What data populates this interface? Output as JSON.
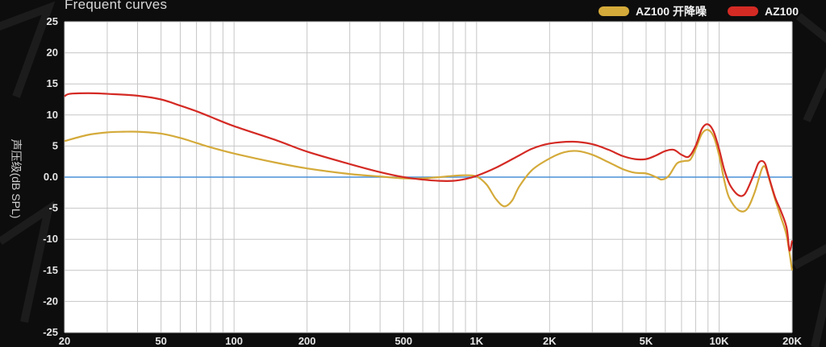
{
  "chart_data": {
    "type": "line",
    "title": "Frequent curves",
    "ylabel": "声压级(dB SPL)",
    "xlabel": "",
    "xscale": "log",
    "xlim": [
      20,
      20000
    ],
    "ylim": [
      -25,
      25
    ],
    "grid": true,
    "legend_position": "top-right",
    "xticks": [
      {
        "value": 20,
        "label": "20"
      },
      {
        "value": 50,
        "label": "50"
      },
      {
        "value": 100,
        "label": "100"
      },
      {
        "value": 200,
        "label": "200"
      },
      {
        "value": 500,
        "label": "500"
      },
      {
        "value": 1000,
        "label": "1K"
      },
      {
        "value": 2000,
        "label": "2K"
      },
      {
        "value": 5000,
        "label": "5K"
      },
      {
        "value": 10000,
        "label": "10K"
      },
      {
        "value": 20000,
        "label": "20K"
      }
    ],
    "yticks": [
      {
        "value": 25,
        "label": "25"
      },
      {
        "value": 20,
        "label": "20"
      },
      {
        "value": 15,
        "label": "15"
      },
      {
        "value": 10,
        "label": "10"
      },
      {
        "value": 5,
        "label": "5"
      },
      {
        "value": 0,
        "label": "0.0"
      },
      {
        "value": -5,
        "label": "-5"
      },
      {
        "value": -10,
        "label": "-10"
      },
      {
        "value": -15,
        "label": "-15"
      },
      {
        "value": -20,
        "label": "-20"
      },
      {
        "value": -25,
        "label": "-25"
      }
    ],
    "reference_line": {
      "value": 0,
      "color": "#4a90d9"
    },
    "series": [
      {
        "name": "AZ100 开降噪",
        "color": "#d4aa3a",
        "points": [
          [
            20,
            5.8
          ],
          [
            25,
            6.8
          ],
          [
            30,
            7.2
          ],
          [
            35,
            7.3
          ],
          [
            40,
            7.3
          ],
          [
            50,
            7.0
          ],
          [
            60,
            6.3
          ],
          [
            70,
            5.5
          ],
          [
            80,
            4.8
          ],
          [
            100,
            3.8
          ],
          [
            150,
            2.3
          ],
          [
            200,
            1.4
          ],
          [
            300,
            0.5
          ],
          [
            400,
            0.1
          ],
          [
            500,
            -0.2
          ],
          [
            600,
            -0.2
          ],
          [
            700,
            0.0
          ],
          [
            800,
            0.2
          ],
          [
            900,
            0.3
          ],
          [
            1000,
            0.1
          ],
          [
            1100,
            -1.2
          ],
          [
            1200,
            -3.5
          ],
          [
            1300,
            -4.7
          ],
          [
            1400,
            -3.8
          ],
          [
            1500,
            -1.5
          ],
          [
            1700,
            1.2
          ],
          [
            2000,
            3.0
          ],
          [
            2300,
            4.0
          ],
          [
            2600,
            4.2
          ],
          [
            3000,
            3.6
          ],
          [
            3500,
            2.4
          ],
          [
            4000,
            1.3
          ],
          [
            4500,
            0.7
          ],
          [
            5000,
            0.6
          ],
          [
            5500,
            0.0
          ],
          [
            5800,
            -0.4
          ],
          [
            6200,
            0.2
          ],
          [
            6700,
            2.2
          ],
          [
            7200,
            2.6
          ],
          [
            7600,
            2.8
          ],
          [
            8000,
            4.5
          ],
          [
            8500,
            7.0
          ],
          [
            9000,
            7.6
          ],
          [
            9500,
            6.5
          ],
          [
            10000,
            3.5
          ],
          [
            10500,
            -0.5
          ],
          [
            11000,
            -3.3
          ],
          [
            12000,
            -5.3
          ],
          [
            13000,
            -5.2
          ],
          [
            14000,
            -2.5
          ],
          [
            15000,
            1.3
          ],
          [
            15500,
            1.6
          ],
          [
            16000,
            0.0
          ],
          [
            17000,
            -3.5
          ],
          [
            18000,
            -6.5
          ],
          [
            19000,
            -9.5
          ],
          [
            20000,
            -15.0
          ]
        ]
      },
      {
        "name": "AZ100",
        "color": "#d42a24",
        "points": [
          [
            20,
            13.0
          ],
          [
            21,
            13.4
          ],
          [
            25,
            13.5
          ],
          [
            30,
            13.4
          ],
          [
            40,
            13.1
          ],
          [
            50,
            12.5
          ],
          [
            60,
            11.5
          ],
          [
            70,
            10.6
          ],
          [
            80,
            9.7
          ],
          [
            100,
            8.2
          ],
          [
            150,
            5.9
          ],
          [
            200,
            4.1
          ],
          [
            300,
            2.1
          ],
          [
            400,
            0.8
          ],
          [
            500,
            0.0
          ],
          [
            600,
            -0.4
          ],
          [
            700,
            -0.6
          ],
          [
            800,
            -0.6
          ],
          [
            900,
            -0.3
          ],
          [
            1000,
            0.2
          ],
          [
            1200,
            1.5
          ],
          [
            1500,
            3.5
          ],
          [
            1700,
            4.6
          ],
          [
            2000,
            5.4
          ],
          [
            2500,
            5.7
          ],
          [
            3000,
            5.3
          ],
          [
            3500,
            4.4
          ],
          [
            4000,
            3.4
          ],
          [
            4500,
            2.9
          ],
          [
            5000,
            2.9
          ],
          [
            5500,
            3.5
          ],
          [
            6000,
            4.2
          ],
          [
            6500,
            4.4
          ],
          [
            7000,
            3.6
          ],
          [
            7500,
            3.3
          ],
          [
            8000,
            5.0
          ],
          [
            8500,
            7.8
          ],
          [
            9000,
            8.5
          ],
          [
            9500,
            7.3
          ],
          [
            10000,
            4.5
          ],
          [
            10500,
            1.2
          ],
          [
            11000,
            -1.0
          ],
          [
            11500,
            -2.2
          ],
          [
            12000,
            -2.9
          ],
          [
            12500,
            -3.0
          ],
          [
            13000,
            -2.2
          ],
          [
            14000,
            0.7
          ],
          [
            14500,
            2.2
          ],
          [
            15000,
            2.6
          ],
          [
            15500,
            2.1
          ],
          [
            16000,
            0.2
          ],
          [
            17000,
            -3.2
          ],
          [
            18000,
            -5.5
          ],
          [
            19000,
            -8.2
          ],
          [
            19500,
            -11.8
          ],
          [
            20000,
            -10.2
          ]
        ]
      }
    ]
  }
}
